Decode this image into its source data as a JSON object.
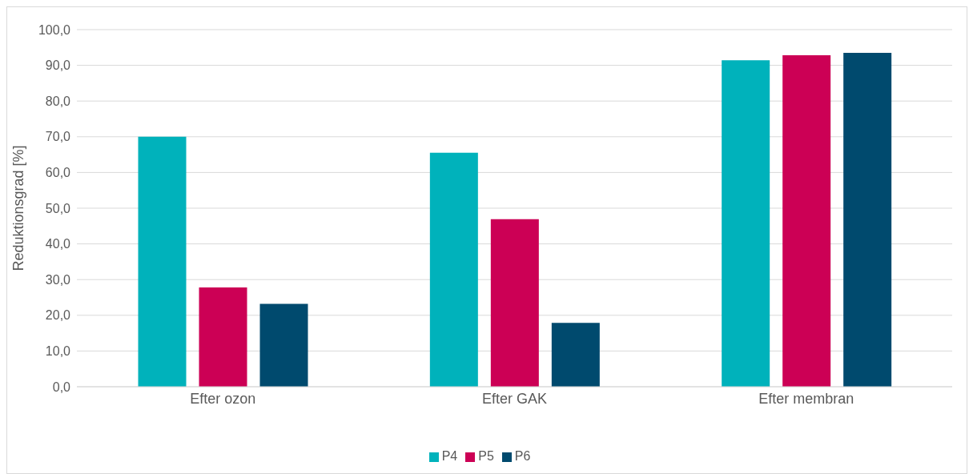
{
  "chart_data": {
    "type": "bar",
    "ylabel": "Reduktionsgrad [%]",
    "categories": [
      "Efter ozon",
      "Efter GAK",
      "Efter membran"
    ],
    "series": [
      {
        "name": "P4",
        "color": "#00b2bb",
        "values": [
          70.0,
          65.5,
          91.4
        ]
      },
      {
        "name": "P5",
        "color": "#cc0055",
        "values": [
          27.8,
          46.9,
          92.8
        ]
      },
      {
        "name": "P6",
        "color": "#004a6e",
        "values": [
          23.2,
          17.9,
          93.5
        ]
      }
    ],
    "ylim": [
      0,
      100
    ],
    "yticks": [
      {
        "value": 0,
        "label": "0,0"
      },
      {
        "value": 10,
        "label": "10,0"
      },
      {
        "value": 20,
        "label": "20,0"
      },
      {
        "value": 30,
        "label": "30,0"
      },
      {
        "value": 40,
        "label": "40,0"
      },
      {
        "value": 50,
        "label": "50,0"
      },
      {
        "value": 60,
        "label": "60,0"
      },
      {
        "value": 70,
        "label": "70,0"
      },
      {
        "value": 80,
        "label": "80,0"
      },
      {
        "value": 90,
        "label": "90,0"
      },
      {
        "value": 100,
        "label": "100,0"
      }
    ],
    "grid": "y",
    "legend": "bottom"
  }
}
